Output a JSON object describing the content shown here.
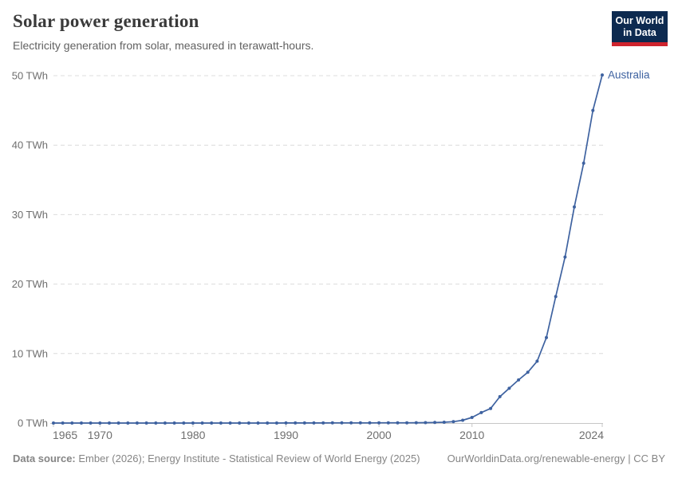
{
  "header": {
    "title": "Solar power generation",
    "subtitle": "Electricity generation from solar, measured in terawatt-hours."
  },
  "logo": {
    "line1": "Our World",
    "line2": "in Data",
    "bg_color": "#0d2a50",
    "stripe_color": "#cf242e"
  },
  "chart_data": {
    "type": "line",
    "title": "Solar power generation",
    "ylabel": "",
    "xlabel": "",
    "unit": "TWh",
    "entity_label": "Australia",
    "line_color": "#3e62a0",
    "grid": "dashed-horizontal",
    "grid_color": "#dcdcdc",
    "axis_color": "#c6c6c6",
    "tick_label_color": "#6e6e6e",
    "xlim": [
      1965,
      2024
    ],
    "ylim": [
      0,
      50
    ],
    "x_ticks": [
      1965,
      1970,
      1980,
      1990,
      2000,
      2010,
      2024
    ],
    "y_ticks": [
      0,
      10,
      20,
      30,
      40,
      50
    ],
    "y_tick_suffix": " TWh",
    "x": [
      1965,
      1966,
      1967,
      1968,
      1969,
      1970,
      1971,
      1972,
      1973,
      1974,
      1975,
      1976,
      1977,
      1978,
      1979,
      1980,
      1981,
      1982,
      1983,
      1984,
      1985,
      1986,
      1987,
      1988,
      1989,
      1990,
      1991,
      1992,
      1993,
      1994,
      1995,
      1996,
      1997,
      1998,
      1999,
      2000,
      2001,
      2002,
      2003,
      2004,
      2005,
      2006,
      2007,
      2008,
      2009,
      2010,
      2011,
      2012,
      2013,
      2014,
      2015,
      2016,
      2017,
      2018,
      2019,
      2020,
      2021,
      2022,
      2023,
      2024
    ],
    "series": [
      {
        "name": "Australia",
        "values": [
          0,
          0,
          0,
          0,
          0,
          0,
          0,
          0,
          0,
          0,
          0,
          0,
          0,
          0,
          0,
          0,
          0,
          0,
          0,
          0,
          0,
          0,
          0,
          0,
          0,
          0.01,
          0.01,
          0.01,
          0.01,
          0.01,
          0.02,
          0.02,
          0.02,
          0.02,
          0.02,
          0.03,
          0.03,
          0.04,
          0.04,
          0.05,
          0.06,
          0.08,
          0.11,
          0.2,
          0.4,
          0.8,
          1.5,
          2.1,
          3.8,
          5.0,
          6.2,
          7.3,
          8.9,
          12.3,
          18.2,
          23.9,
          31.1,
          37.4,
          45.0,
          50.1
        ]
      }
    ]
  },
  "footer": {
    "source_label": "Data source:",
    "source_text": " Ember (2026); Energy Institute - Statistical Review of World Energy (2025)",
    "link_text": "OurWorldinData.org/renewable-energy | CC BY"
  }
}
